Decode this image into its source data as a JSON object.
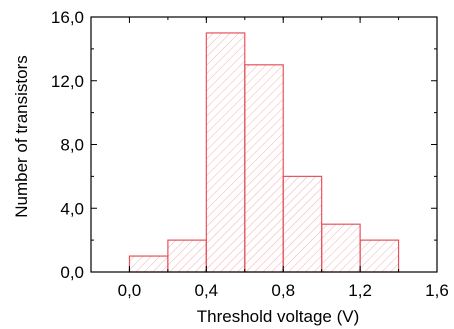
{
  "chart_data": {
    "type": "bar",
    "title": "",
    "xlabel": "Threshold voltage (V)",
    "ylabel": "Number of transistors",
    "xlim": [
      -0.2,
      1.6
    ],
    "ylim": [
      0,
      16
    ],
    "xticks": [
      0.0,
      0.4,
      0.8,
      1.2,
      1.6
    ],
    "xtick_labels": [
      "0,0",
      "0,4",
      "0,8",
      "1,2",
      "1,6"
    ],
    "yticks": [
      0,
      4,
      8,
      12,
      16
    ],
    "ytick_labels": [
      "0,0",
      "4,0",
      "8,0",
      "12,0",
      "16,0"
    ],
    "bin_width": 0.2,
    "bins": [
      {
        "start": 0.0,
        "end": 0.2,
        "value": 1
      },
      {
        "start": 0.2,
        "end": 0.4,
        "value": 2
      },
      {
        "start": 0.4,
        "end": 0.6,
        "value": 15
      },
      {
        "start": 0.6,
        "end": 0.8,
        "value": 13
      },
      {
        "start": 0.8,
        "end": 1.0,
        "value": 6
      },
      {
        "start": 1.0,
        "end": 1.2,
        "value": 3
      },
      {
        "start": 1.2,
        "end": 1.4,
        "value": 2
      }
    ],
    "grid": false,
    "bar_edge_color": "#e8535b",
    "bar_hatch_color": "#f4b0b4"
  }
}
